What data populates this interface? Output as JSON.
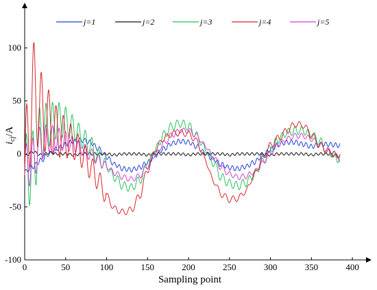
{
  "chart_data": {
    "type": "line",
    "title": "",
    "xlabel": "Sampling point",
    "ylabel": "i_cj/A",
    "ylabel_main": "i",
    "ylabel_sub": "cj",
    "ylabel_unit": "/A",
    "xlim": [
      0,
      420
    ],
    "ylim": [
      -100,
      140
    ],
    "x_ticks": [
      0,
      50,
      100,
      150,
      200,
      250,
      300,
      350,
      400
    ],
    "y_ticks": [
      -100,
      -50,
      0,
      50,
      100
    ],
    "grid": false,
    "legend_position": "top",
    "series": [
      {
        "name": "j=1",
        "color": "#1f3fd6",
        "x": [
          0,
          10,
          20,
          30,
          40,
          50,
          60,
          70,
          80,
          90,
          100,
          110,
          120,
          130,
          140,
          150,
          160,
          170,
          180,
          190,
          200,
          210,
          220,
          230,
          240,
          250,
          260,
          270,
          280,
          290,
          300,
          310,
          320,
          330,
          340,
          350,
          360,
          370,
          385
        ],
        "y": [
          -17,
          -12,
          -6,
          0,
          5,
          9,
          12,
          13,
          11,
          5,
          -3,
          -10,
          -14,
          -15,
          -13,
          -8,
          -1,
          5,
          10,
          12,
          11,
          7,
          1,
          -5,
          -10,
          -13,
          -14,
          -12,
          -8,
          -2,
          4,
          9,
          11,
          11,
          9,
          7,
          9,
          9,
          8
        ]
      },
      {
        "name": "j=2",
        "color": "#111111",
        "x": [
          0,
          10,
          20,
          30,
          40,
          50,
          60,
          70,
          80,
          90,
          100,
          110,
          120,
          130,
          140,
          150,
          160,
          170,
          180,
          190,
          200,
          210,
          220,
          230,
          240,
          250,
          260,
          270,
          280,
          290,
          300,
          310,
          320,
          330,
          340,
          350,
          360,
          370,
          385
        ],
        "y": [
          -2,
          2,
          -1,
          1,
          0,
          0,
          -1,
          0,
          0,
          0,
          0,
          -1,
          0,
          0,
          0,
          -1,
          0,
          0,
          0,
          0,
          -1,
          0,
          0,
          0,
          0,
          -1,
          0,
          0,
          0,
          0,
          -1,
          0,
          0,
          0,
          0,
          -1,
          0,
          0,
          -2
        ]
      },
      {
        "name": "j=3",
        "color": "#22c25a",
        "x": [
          0,
          10,
          20,
          30,
          40,
          50,
          60,
          70,
          80,
          90,
          100,
          110,
          120,
          130,
          140,
          150,
          160,
          170,
          180,
          190,
          200,
          210,
          220,
          230,
          240,
          250,
          260,
          270,
          280,
          290,
          300,
          310,
          320,
          330,
          340,
          350,
          360,
          370,
          385
        ],
        "y": [
          -20,
          -10,
          20,
          28,
          32,
          30,
          24,
          15,
          8,
          -3,
          -12,
          -22,
          -30,
          -32,
          -25,
          -10,
          5,
          18,
          26,
          29,
          26,
          17,
          5,
          -8,
          -22,
          -28,
          -30,
          -27,
          -20,
          -8,
          5,
          14,
          20,
          22,
          22,
          18,
          12,
          2,
          -5
        ]
      },
      {
        "name": "j=4",
        "color": "#d8232a",
        "x": [
          0,
          10,
          20,
          30,
          40,
          50,
          60,
          70,
          80,
          90,
          100,
          110,
          120,
          130,
          140,
          150,
          160,
          170,
          180,
          190,
          200,
          210,
          220,
          230,
          240,
          250,
          260,
          270,
          280,
          290,
          300,
          310,
          320,
          330,
          340,
          350,
          360,
          370,
          385
        ],
        "y": [
          -20,
          60,
          40,
          30,
          20,
          15,
          10,
          0,
          -12,
          -25,
          -40,
          -52,
          -55,
          -53,
          -40,
          -15,
          5,
          15,
          19,
          20,
          19,
          12,
          -5,
          -25,
          -38,
          -43,
          -42,
          -35,
          -20,
          -5,
          8,
          15,
          22,
          28,
          27,
          18,
          8,
          2,
          -4
        ]
      },
      {
        "name": "j=5",
        "color": "#d43bd4",
        "x": [
          0,
          10,
          20,
          30,
          40,
          50,
          60,
          70,
          80,
          90,
          100,
          110,
          120,
          130,
          140,
          150,
          160,
          170,
          180,
          190,
          200,
          210,
          220,
          230,
          240,
          250,
          260,
          270,
          280,
          290,
          300,
          310,
          320,
          330,
          340,
          350,
          360,
          370,
          385
        ],
        "y": [
          -15,
          -5,
          10,
          15,
          14,
          12,
          9,
          5,
          0,
          -6,
          -12,
          -18,
          -22,
          -24,
          -21,
          -12,
          0,
          10,
          18,
          22,
          22,
          17,
          8,
          -3,
          -13,
          -19,
          -22,
          -21,
          -17,
          -9,
          1,
          9,
          14,
          17,
          17,
          14,
          9,
          3,
          -2
        ]
      }
    ]
  }
}
